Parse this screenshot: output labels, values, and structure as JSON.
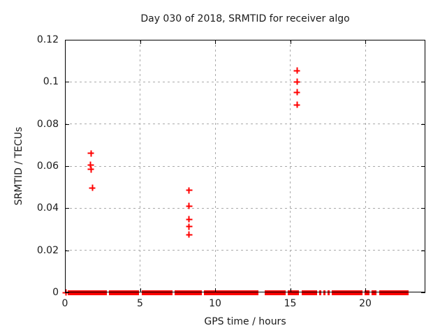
{
  "chart_data": {
    "type": "scatter",
    "title": "Day 030 of 2018, SRMTID for receiver algo",
    "xlabel": "GPS time / hours",
    "ylabel": "SRMTID / TECUs",
    "xlim": [
      0,
      24
    ],
    "ylim": [
      0,
      0.12
    ],
    "grid": true,
    "legend": "none",
    "marker": {
      "shape": "plus",
      "color": "#ff0000"
    },
    "grid_color": "#a9a9a9",
    "xticks": [
      {
        "v": 0,
        "label": "0"
      },
      {
        "v": 5,
        "label": "5"
      },
      {
        "v": 10,
        "label": "10"
      },
      {
        "v": 15,
        "label": "15"
      },
      {
        "v": 20,
        "label": "20"
      }
    ],
    "yticks": [
      {
        "v": 0,
        "label": "0"
      },
      {
        "v": 0.02,
        "label": "0.02"
      },
      {
        "v": 0.04,
        "label": "0.04"
      },
      {
        "v": 0.06,
        "label": "0.06"
      },
      {
        "v": 0.08,
        "label": "0.08"
      },
      {
        "v": 0.1,
        "label": "0.1"
      },
      {
        "v": 0.12,
        "label": "0.12"
      }
    ],
    "series": [
      {
        "name": "SRMTID",
        "points": [
          [
            0.05,
            0
          ],
          [
            1.74,
            0.066
          ],
          [
            1.71,
            0.0605
          ],
          [
            1.74,
            0.0585
          ],
          [
            1.83,
            0.0497
          ],
          [
            8.26,
            0.0484
          ],
          [
            8.26,
            0.0411
          ],
          [
            8.26,
            0.0348
          ],
          [
            8.26,
            0.0312
          ],
          [
            8.26,
            0.0275
          ],
          [
            15.45,
            0.1054
          ],
          [
            15.45,
            0.1001
          ],
          [
            15.45,
            0.0951
          ],
          [
            15.45,
            0.0891
          ]
        ]
      }
    ],
    "zero_band_segments_hours": [
      [
        0.18,
        2.78
      ],
      [
        2.92,
        4.95
      ],
      [
        5.1,
        7.14
      ],
      [
        7.3,
        9.1
      ],
      [
        9.24,
        12.9
      ],
      [
        13.3,
        14.68
      ],
      [
        14.82,
        15.6
      ],
      [
        15.75,
        16.78
      ],
      [
        16.92,
        17.05
      ],
      [
        17.2,
        17.34
      ],
      [
        17.5,
        17.62
      ],
      [
        17.78,
        19.8
      ],
      [
        19.95,
        20.26
      ],
      [
        20.42,
        20.76
      ],
      [
        20.92,
        22.88
      ]
    ]
  }
}
